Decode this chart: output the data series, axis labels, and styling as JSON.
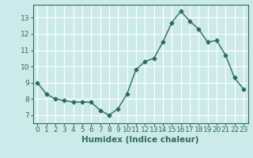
{
  "x": [
    0,
    1,
    2,
    3,
    4,
    5,
    6,
    7,
    8,
    9,
    10,
    11,
    12,
    13,
    14,
    15,
    16,
    17,
    18,
    19,
    20,
    21,
    22,
    23
  ],
  "y": [
    9.0,
    8.3,
    8.0,
    7.9,
    7.8,
    7.8,
    7.8,
    7.3,
    7.0,
    7.4,
    8.3,
    9.8,
    10.3,
    10.5,
    11.5,
    12.7,
    13.4,
    12.8,
    12.3,
    11.5,
    11.6,
    10.7,
    9.3,
    8.6
  ],
  "line_color": "#2e6b5e",
  "marker": "D",
  "markersize": 2.5,
  "linewidth": 1.0,
  "xlabel": "Humidex (Indice chaleur)",
  "xlim": [
    -0.5,
    23.5
  ],
  "ylim": [
    6.5,
    13.8
  ],
  "yticks": [
    7,
    8,
    9,
    10,
    11,
    12,
    13
  ],
  "xticks": [
    0,
    1,
    2,
    3,
    4,
    5,
    6,
    7,
    8,
    9,
    10,
    11,
    12,
    13,
    14,
    15,
    16,
    17,
    18,
    19,
    20,
    21,
    22,
    23
  ],
  "bg_color": "#cdeaea",
  "grid_color": "#ffffff",
  "tick_color": "#2e6b5e",
  "xlabel_fontsize": 7.5,
  "tick_fontsize": 6.5
}
